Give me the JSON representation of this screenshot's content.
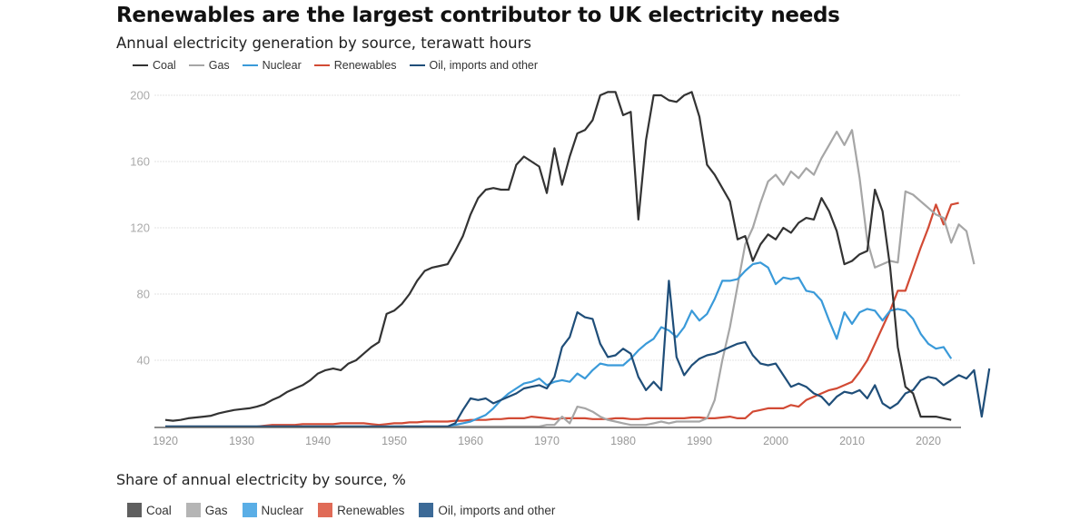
{
  "header": {
    "title": "Renewables are the largest contributor to UK electricity needs",
    "subtitle": "Annual electricity generation by source, terawatt hours"
  },
  "legend": [
    {
      "name": "Coal",
      "color": "#333333"
    },
    {
      "name": "Gas",
      "color": "#a6a6a6"
    },
    {
      "name": "Nuclear",
      "color": "#3a9ad9"
    },
    {
      "name": "Renewables",
      "color": "#d24a34"
    },
    {
      "name": "Oil, imports and other",
      "color": "#1f4e79"
    }
  ],
  "share_section": {
    "title": "Share of annual electricity by source, %",
    "legend": [
      {
        "name": "Coal",
        "color": "#5f5f5f"
      },
      {
        "name": "Gas",
        "color": "#b5b5b5"
      },
      {
        "name": "Nuclear",
        "color": "#5aaee6"
      },
      {
        "name": "Renewables",
        "color": "#e06b57"
      },
      {
        "name": "Oil, imports and other",
        "color": "#3c6a97"
      }
    ]
  },
  "chart_data": {
    "type": "line",
    "title": "Renewables are the largest contributor to UK electricity needs",
    "subtitle": "Annual electricity generation by source, terawatt hours",
    "xlabel": "",
    "ylabel": "TWh",
    "x_start": 1920,
    "x_end": 2023,
    "xlim": [
      1920,
      2023
    ],
    "ylim": [
      0,
      205
    ],
    "x_ticks": [
      1920,
      1930,
      1940,
      1950,
      1960,
      1970,
      1980,
      1990,
      2000,
      2010,
      2020
    ],
    "y_ticks": [
      40,
      80,
      120,
      160,
      200
    ],
    "grid": true,
    "legend_position": "top-left",
    "series": [
      {
        "name": "Coal",
        "color": "#333333",
        "values": [
          4,
          3.5,
          4,
          5,
          5.5,
          6,
          6.5,
          8,
          9,
          10,
          10.5,
          11,
          12,
          13.5,
          16,
          18,
          21,
          23,
          25,
          28,
          32,
          34,
          35,
          34,
          38,
          40,
          44,
          48,
          51,
          68,
          70,
          74,
          80,
          88,
          94,
          96,
          97,
          98,
          106,
          115,
          128,
          138,
          143,
          144,
          143,
          143,
          158,
          163,
          160,
          157,
          141,
          168,
          146,
          163,
          177,
          179,
          185,
          200,
          202,
          202,
          188,
          190,
          125,
          173,
          200,
          200,
          197,
          196,
          200,
          202,
          187,
          158,
          152,
          144,
          136,
          113,
          115,
          100,
          110,
          116,
          113,
          120,
          117,
          123,
          126,
          125,
          138,
          130,
          118,
          98,
          100,
          104,
          106,
          143,
          130,
          96,
          48,
          24,
          20,
          6,
          6,
          6,
          5,
          4
        ]
      },
      {
        "name": "Gas",
        "color": "#a6a6a6",
        "values": [
          0,
          0,
          0,
          0,
          0,
          0,
          0,
          0,
          0,
          0,
          0,
          0,
          0,
          0,
          0,
          0,
          0,
          0,
          0,
          0,
          0,
          0,
          0,
          0,
          0,
          0,
          0,
          0,
          0,
          0,
          0,
          0,
          0,
          0,
          0,
          0,
          0,
          0,
          0,
          0,
          0,
          0,
          0,
          0,
          0,
          0,
          0,
          0,
          0,
          0,
          1,
          1,
          6,
          2,
          12,
          11,
          9,
          6,
          4,
          3,
          2,
          1,
          1,
          1,
          2,
          3,
          2,
          3,
          3,
          3,
          3,
          5,
          16,
          40,
          60,
          85,
          110,
          120,
          135,
          148,
          152,
          146,
          154,
          150,
          156,
          152,
          162,
          170,
          178,
          170,
          179,
          150,
          112,
          96,
          98,
          100,
          99,
          142,
          140,
          136,
          132,
          128,
          126,
          111,
          122,
          118,
          98
        ]
      },
      {
        "name": "Nuclear",
        "color": "#3a9ad9",
        "values": [
          0,
          0,
          0,
          0,
          0,
          0,
          0,
          0,
          0,
          0,
          0,
          0,
          0,
          0,
          0,
          0,
          0,
          0,
          0,
          0,
          0,
          0,
          0,
          0,
          0,
          0,
          0,
          0,
          0,
          0,
          0,
          0,
          0,
          0,
          0,
          0,
          0,
          0,
          1,
          2,
          3,
          5,
          7,
          11,
          16,
          20,
          23,
          26,
          27,
          29,
          25,
          27,
          28,
          27,
          32,
          29,
          34,
          38,
          37,
          37,
          37,
          41,
          46,
          50,
          53,
          60,
          58,
          54,
          60,
          70,
          64,
          68,
          77,
          88,
          88,
          89,
          94,
          98,
          99,
          96,
          86,
          90,
          89,
          90,
          82,
          81,
          76,
          64,
          53,
          69,
          62,
          69,
          71,
          70,
          64,
          70,
          71,
          70,
          65,
          56,
          50,
          47,
          48,
          41
        ]
      },
      {
        "name": "Renewables",
        "color": "#d24a34",
        "values": [
          0,
          0,
          0,
          0,
          0,
          0,
          0,
          0,
          0,
          0,
          0,
          0,
          0,
          0.5,
          1,
          1,
          1,
          1,
          1.5,
          1.5,
          1.5,
          1.5,
          1.5,
          2,
          2,
          2,
          2,
          1.5,
          1,
          1.5,
          2,
          2,
          2.5,
          2.5,
          3,
          3,
          3,
          3,
          3.5,
          3.5,
          4,
          4,
          4,
          4.5,
          4.5,
          5,
          5,
          5,
          6,
          5.5,
          5,
          4.5,
          5,
          5,
          5,
          5,
          4.5,
          4.5,
          4.5,
          5,
          5,
          4.5,
          4.5,
          5,
          5,
          5,
          5,
          5,
          5,
          5.5,
          5.5,
          5,
          5,
          5.5,
          6,
          5,
          5,
          9,
          10,
          11,
          11,
          11,
          13,
          12,
          16,
          18,
          20,
          22,
          23,
          25,
          27,
          33,
          40,
          50,
          60,
          70,
          82,
          82,
          95,
          108,
          120,
          134,
          122,
          134,
          135
        ]
      },
      {
        "name": "Oil, imports and other",
        "color": "#1f4e79",
        "values": [
          0,
          0,
          0,
          0,
          0,
          0,
          0,
          0,
          0,
          0,
          0,
          0,
          0,
          0,
          0,
          0,
          0,
          0,
          0,
          0,
          0,
          0,
          0,
          0,
          0,
          0,
          0,
          0,
          0,
          0,
          0,
          0,
          0,
          0,
          0,
          0,
          0,
          0,
          2,
          10,
          17,
          16,
          17,
          14,
          16,
          18,
          20,
          23,
          24,
          25,
          23,
          30,
          48,
          54,
          69,
          66,
          65,
          50,
          42,
          43,
          47,
          44,
          30,
          22,
          27,
          22,
          88,
          42,
          31,
          37,
          41,
          43,
          44,
          46,
          48,
          50,
          51,
          43,
          38,
          37,
          38,
          31,
          24,
          26,
          24,
          20,
          18,
          13,
          18,
          21,
          20,
          22,
          17,
          25,
          14,
          11,
          14,
          20,
          22,
          28,
          30,
          29,
          25,
          28,
          31,
          29,
          34,
          6,
          35
        ]
      }
    ]
  }
}
